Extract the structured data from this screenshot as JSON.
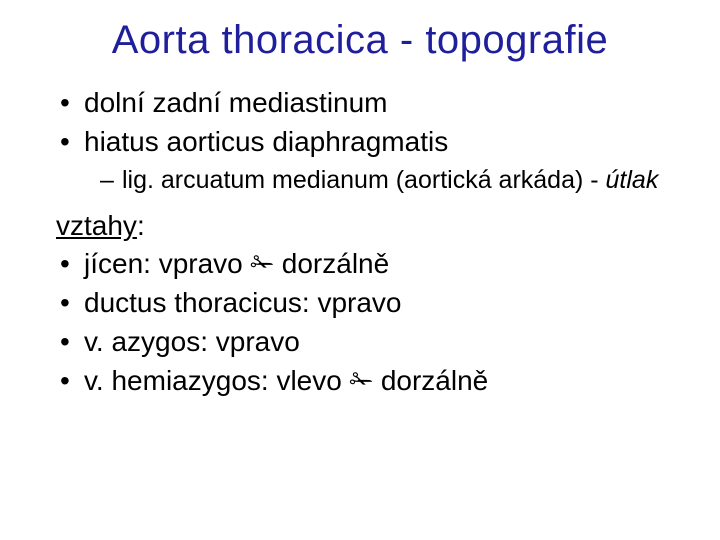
{
  "title": "Aorta thoracica - topografie",
  "colors": {
    "title": "#1f1f9c",
    "body_text": "#000000",
    "background": "#ffffff"
  },
  "typography": {
    "title_fontsize_pt": 40,
    "body_fontsize_pt": 28,
    "sub_fontsize_pt": 25,
    "font_family": "Arial"
  },
  "bullets_top": [
    "dolní zadní mediastinum",
    "hiatus aorticus diaphragmatis"
  ],
  "subbullet": {
    "prefix": "lig. arcuatum medianum (aortická arkáda) - ",
    "italic_suffix": "útlak"
  },
  "section_label": "vztahy",
  "section_colon": ":",
  "arrow_glyph": "✁",
  "relations": [
    {
      "before": "jícen: vpravo ",
      "arrow": true,
      "after": " dorzálně"
    },
    {
      "before": "ductus thoracicus: vpravo",
      "arrow": false,
      "after": ""
    },
    {
      "before": "v. azygos: vpravo",
      "arrow": false,
      "after": ""
    },
    {
      "before": "v. hemiazygos: vlevo ",
      "arrow": true,
      "after": " dorzálně"
    }
  ]
}
